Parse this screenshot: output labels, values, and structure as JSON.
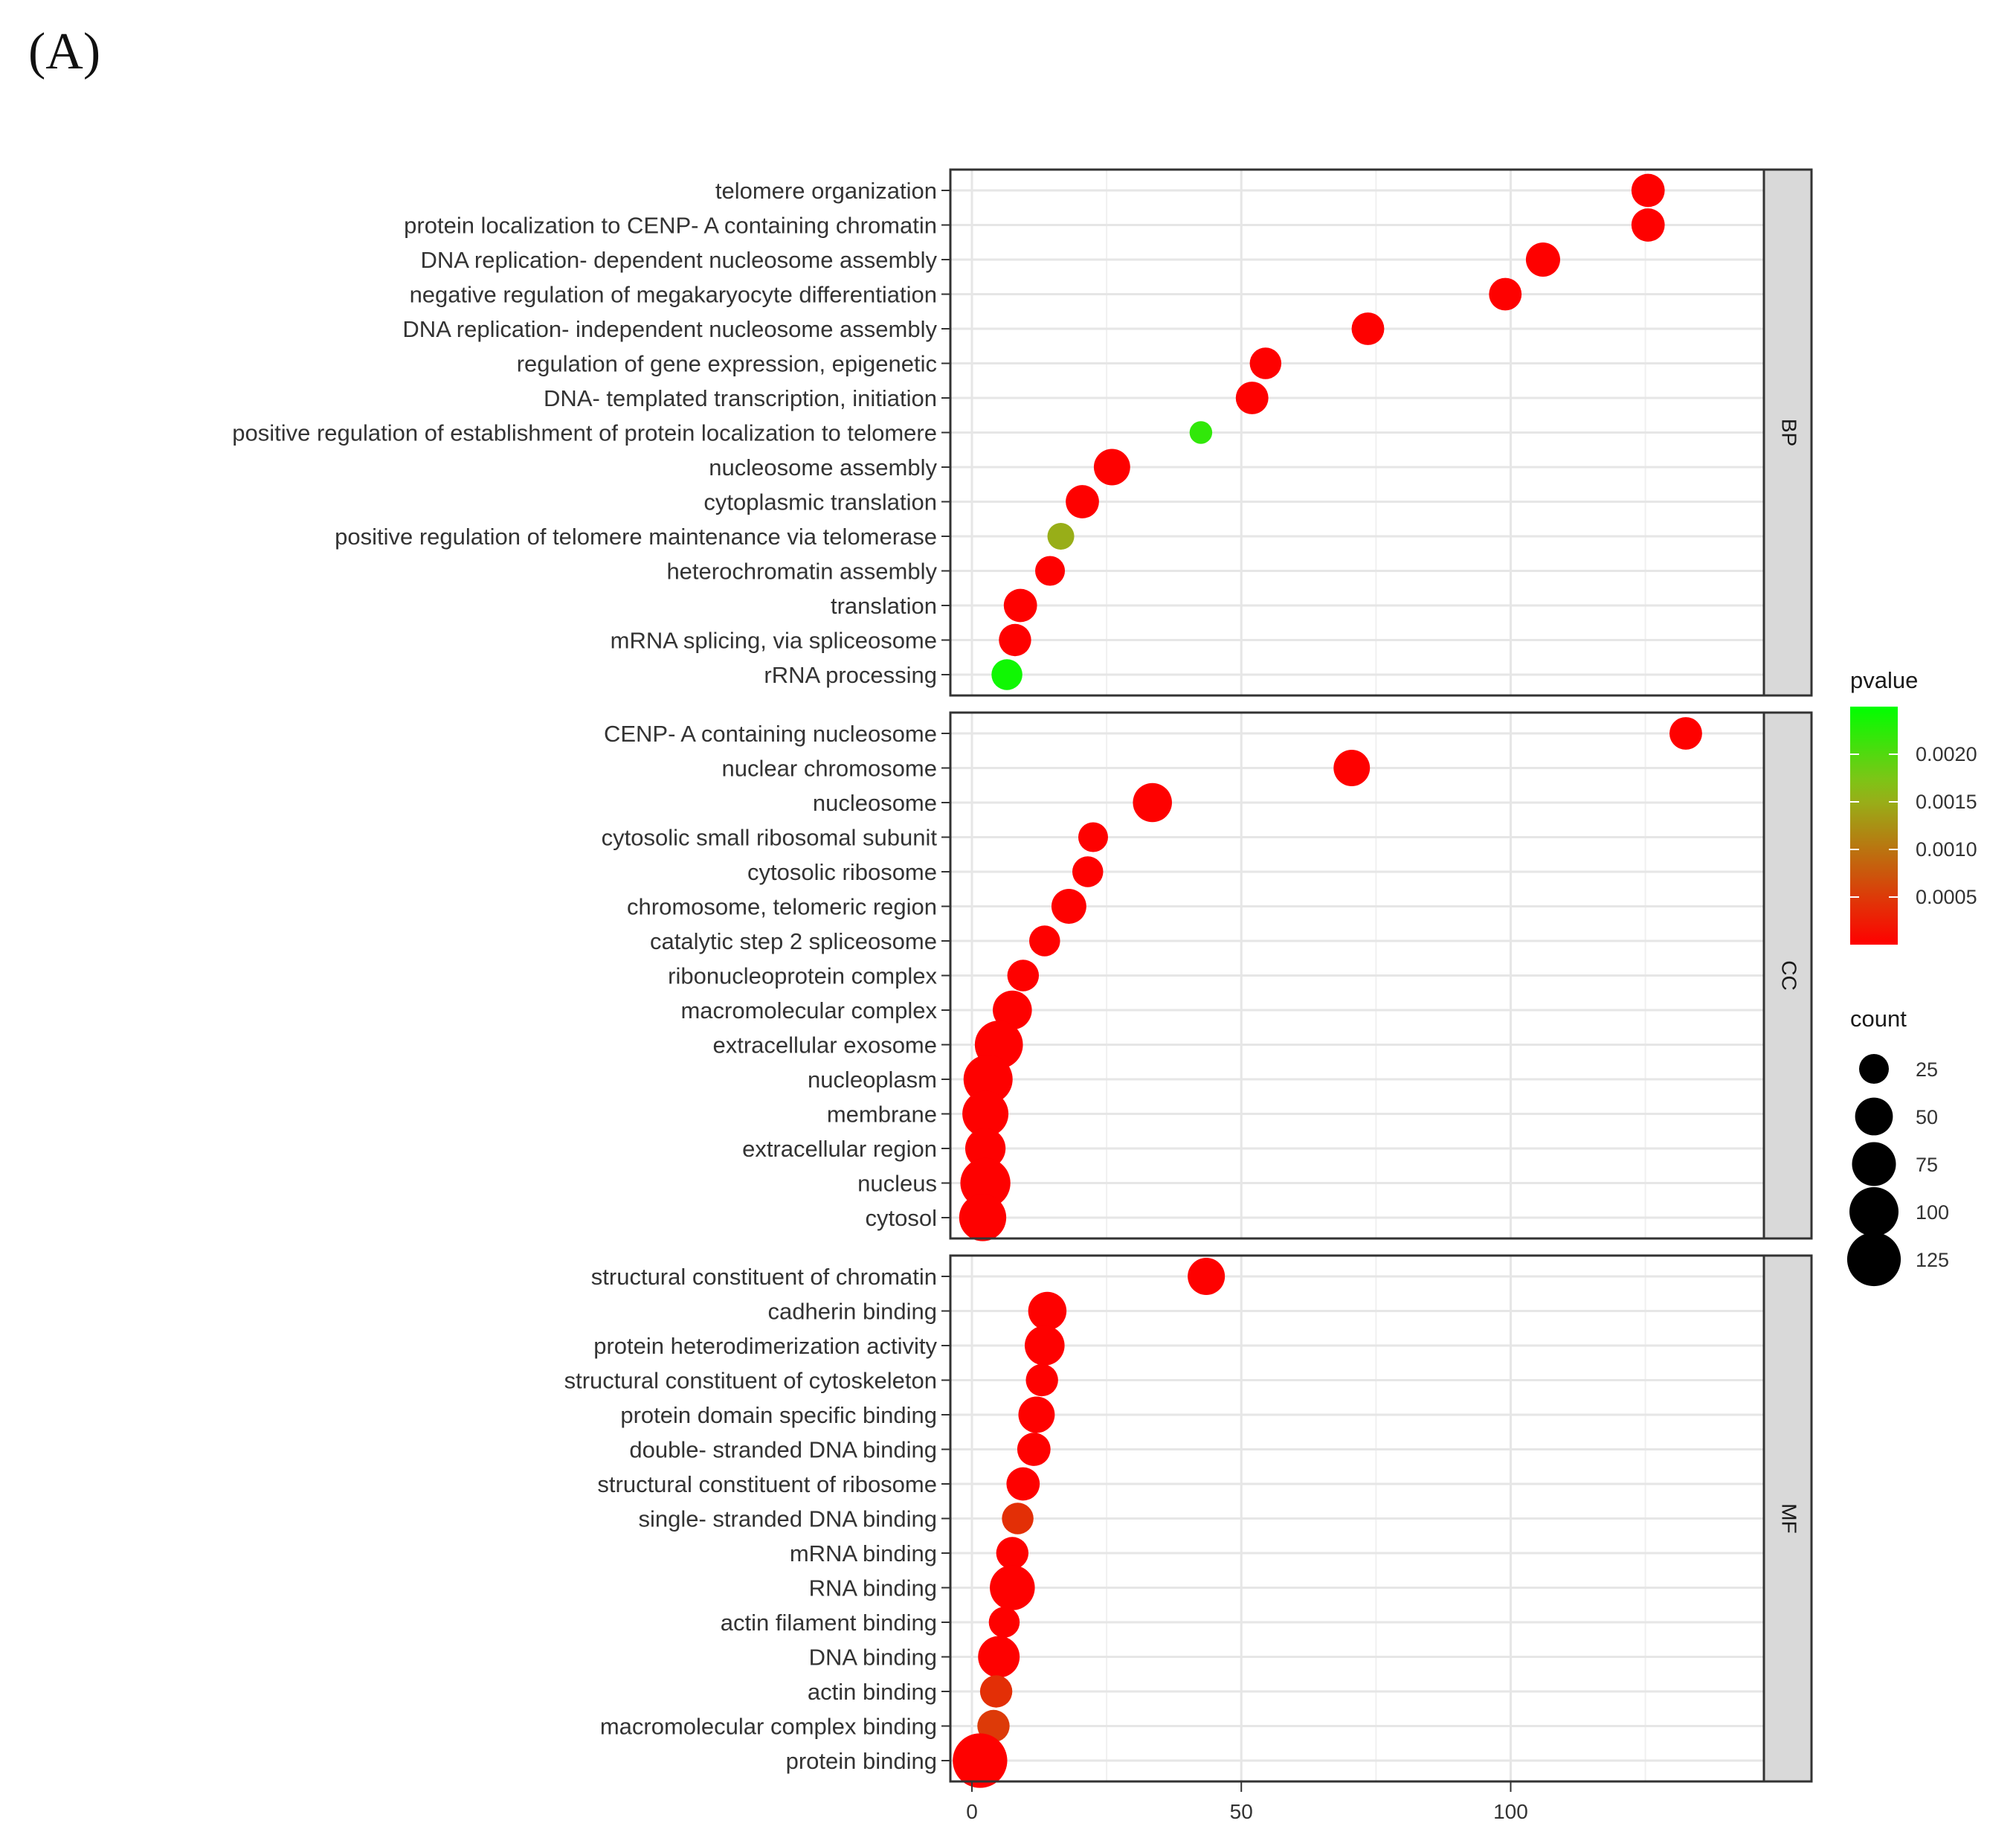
{
  "panel_label": "(A)",
  "chart_data": {
    "type": "scatter",
    "subtype": "dot plot (GO enrichment), faceted",
    "xlim": [
      -4,
      147
    ],
    "x_ticks": [
      0,
      50,
      100
    ],
    "x_tick_labels": [
      "0",
      "50",
      "100"
    ],
    "grid": true,
    "facets": [
      {
        "label": "BP",
        "terms": [
          {
            "term": "telomere organization",
            "x": 125.5,
            "count": 35,
            "pvalue": 1e-05
          },
          {
            "term": "protein localization to CENP- A containing chromatin",
            "x": 125.5,
            "count": 35,
            "pvalue": 1e-05
          },
          {
            "term": "DNA replication- dependent nucleosome assembly",
            "x": 106,
            "count": 38,
            "pvalue": 1e-05
          },
          {
            "term": "negative regulation of megakaryocyte differentiation",
            "x": 99,
            "count": 33,
            "pvalue": 1e-05
          },
          {
            "term": "DNA replication- independent nucleosome assembly",
            "x": 73.5,
            "count": 33,
            "pvalue": 1e-05
          },
          {
            "term": "regulation of gene expression, epigenetic",
            "x": 54.5,
            "count": 30,
            "pvalue": 1e-05
          },
          {
            "term": "DNA- templated transcription, initiation",
            "x": 52,
            "count": 33,
            "pvalue": 1e-05
          },
          {
            "term": "positive regulation of establishment of protein localization to telomere",
            "x": 42.5,
            "count": 10,
            "pvalue": 0.0022
          },
          {
            "term": "nucleosome assembly",
            "x": 26,
            "count": 45,
            "pvalue": 1e-05
          },
          {
            "term": "cytoplasmic translation",
            "x": 20.5,
            "count": 35,
            "pvalue": 1e-05
          },
          {
            "term": "positive regulation of telomere maintenance via telomerase",
            "x": 16.5,
            "count": 18,
            "pvalue": 0.0015
          },
          {
            "term": "heterochromatin assembly",
            "x": 14.5,
            "count": 25,
            "pvalue": 1e-05
          },
          {
            "term": "translation",
            "x": 9,
            "count": 35,
            "pvalue": 1e-05
          },
          {
            "term": "mRNA splicing, via spliceosome",
            "x": 8,
            "count": 32,
            "pvalue": 1e-05
          },
          {
            "term": "rRNA processing",
            "x": 6.5,
            "count": 28,
            "pvalue": 0.0024
          }
        ]
      },
      {
        "label": "CC",
        "terms": [
          {
            "term": "CENP- A containing nucleosome",
            "x": 132.5,
            "count": 33,
            "pvalue": 1e-05
          },
          {
            "term": "nuclear chromosome",
            "x": 70.5,
            "count": 45,
            "pvalue": 1e-05
          },
          {
            "term": "nucleosome",
            "x": 33.5,
            "count": 55,
            "pvalue": 1e-05
          },
          {
            "term": "cytosolic small ribosomal subunit",
            "x": 22.5,
            "count": 25,
            "pvalue": 1e-05
          },
          {
            "term": "cytosolic ribosome",
            "x": 21.5,
            "count": 28,
            "pvalue": 1e-05
          },
          {
            "term": "chromosome, telomeric region",
            "x": 18,
            "count": 40,
            "pvalue": 1e-05
          },
          {
            "term": "catalytic step 2 spliceosome",
            "x": 13.5,
            "count": 28,
            "pvalue": 1e-05
          },
          {
            "term": "ribonucleoprotein complex",
            "x": 9.5,
            "count": 30,
            "pvalue": 1e-05
          },
          {
            "term": "macromolecular complex",
            "x": 7.5,
            "count": 55,
            "pvalue": 1e-05
          },
          {
            "term": "extracellular exosome",
            "x": 5,
            "count": 95,
            "pvalue": 1e-05
          },
          {
            "term": "nucleoplasm",
            "x": 3,
            "count": 100,
            "pvalue": 1e-05
          },
          {
            "term": "membrane",
            "x": 2.5,
            "count": 85,
            "pvalue": 1e-05
          },
          {
            "term": "extracellular region",
            "x": 2.5,
            "count": 60,
            "pvalue": 1e-05
          },
          {
            "term": "nucleus",
            "x": 2.5,
            "count": 105,
            "pvalue": 1e-05
          },
          {
            "term": "cytosol",
            "x": 2,
            "count": 90,
            "pvalue": 1e-05
          }
        ]
      },
      {
        "label": "MF",
        "terms": [
          {
            "term": "structural constituent of chromatin",
            "x": 43.5,
            "count": 48,
            "pvalue": 1e-05
          },
          {
            "term": "cadherin binding",
            "x": 14,
            "count": 52,
            "pvalue": 1e-05
          },
          {
            "term": "protein heterodimerization activity",
            "x": 13.5,
            "count": 58,
            "pvalue": 1e-05
          },
          {
            "term": "structural constituent of cytoskeleton",
            "x": 13,
            "count": 32,
            "pvalue": 1e-05
          },
          {
            "term": "protein domain specific binding",
            "x": 12,
            "count": 45,
            "pvalue": 1e-05
          },
          {
            "term": "double- stranded DNA binding",
            "x": 11.5,
            "count": 35,
            "pvalue": 1e-05
          },
          {
            "term": "structural constituent of ribosome",
            "x": 9.5,
            "count": 35,
            "pvalue": 1e-05
          },
          {
            "term": "single- stranded DNA binding",
            "x": 8.5,
            "count": 30,
            "pvalue": 0.0004
          },
          {
            "term": "mRNA binding",
            "x": 7.5,
            "count": 32,
            "pvalue": 1e-05
          },
          {
            "term": "RNA binding",
            "x": 7.5,
            "count": 80,
            "pvalue": 1e-05
          },
          {
            "term": "actin filament binding",
            "x": 6,
            "count": 28,
            "pvalue": 1e-05
          },
          {
            "term": "DNA binding",
            "x": 5,
            "count": 65,
            "pvalue": 1e-05
          },
          {
            "term": "actin binding",
            "x": 4.5,
            "count": 32,
            "pvalue": 0.0004
          },
          {
            "term": "macromolecular complex binding",
            "x": 4,
            "count": 32,
            "pvalue": 0.0005
          },
          {
            "term": "protein binding",
            "x": 1.5,
            "count": 130,
            "pvalue": 1e-05
          }
        ]
      }
    ],
    "color_legend": {
      "title": "pvalue",
      "low_color": "#ff0000",
      "mid_color": "#8fbd1a",
      "high_color": "#00ff00",
      "range": [
        0,
        0.0025
      ],
      "ticks": [
        0.002,
        0.0015,
        0.001,
        0.0005
      ],
      "tick_labels": [
        "0.0020",
        "0.0015",
        "0.0010",
        "0.0005"
      ]
    },
    "size_legend": {
      "title": "count",
      "values": [
        25,
        50,
        75,
        100,
        125
      ],
      "labels": [
        "25",
        "50",
        "75",
        "100",
        "125"
      ]
    }
  }
}
